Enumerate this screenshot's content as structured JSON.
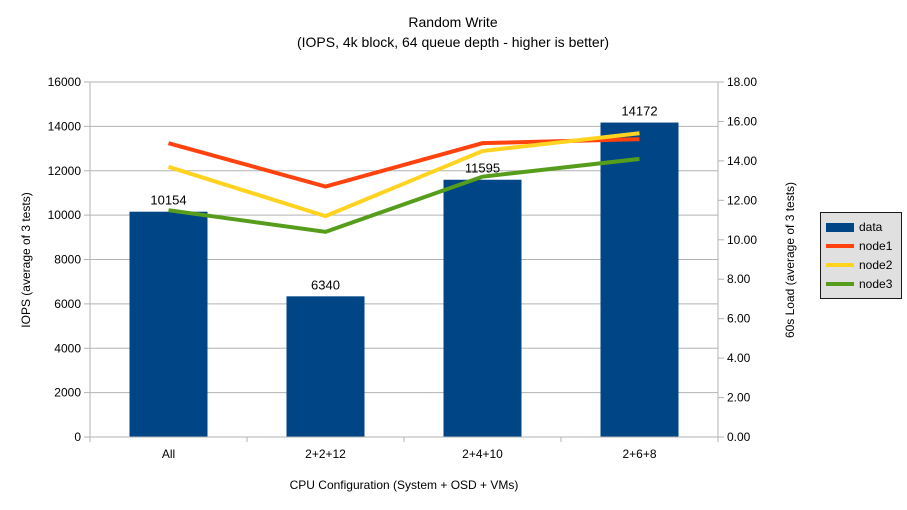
{
  "title": {
    "line1": "Random Write",
    "line2": "(IOPS, 4k block, 64 queue depth - higher is better)"
  },
  "chart_data": {
    "type": "combo-bar-line",
    "categories": [
      "All",
      "2+2+12",
      "2+4+10",
      "2+6+8"
    ],
    "bar_series": {
      "name": "data",
      "color": "#004586",
      "axis": "left",
      "values": [
        10154,
        6340,
        11595,
        14172
      ],
      "labels": [
        "10154",
        "6340",
        "11595",
        "14172"
      ]
    },
    "line_series": [
      {
        "name": "node1",
        "color": "#ff420e",
        "axis": "right",
        "values": [
          14.9,
          12.7,
          14.9,
          15.1
        ]
      },
      {
        "name": "node2",
        "color": "#ffd320",
        "axis": "right",
        "values": [
          13.7,
          11.2,
          14.5,
          15.4
        ]
      },
      {
        "name": "node3",
        "color": "#579d1c",
        "axis": "right",
        "values": [
          11.5,
          10.4,
          13.2,
          14.1
        ]
      }
    ],
    "left_axis": {
      "title": "IOPS (average of 3 tests)",
      "min": 0,
      "max": 16000,
      "step": 2000,
      "tick_labels": [
        "0",
        "2000",
        "4000",
        "6000",
        "8000",
        "10000",
        "12000",
        "14000",
        "16000"
      ]
    },
    "right_axis": {
      "title": "60s Load (average of 3 tests)",
      "min": 0,
      "max": 18,
      "step": 2,
      "tick_labels": [
        "0.00",
        "2.00",
        "4.00",
        "6.00",
        "8.00",
        "10.00",
        "12.00",
        "14.00",
        "16.00",
        "18.00"
      ]
    },
    "x_axis": {
      "title": "CPU Configuration (System + OSD + VMs)"
    },
    "legend": {
      "position": "right",
      "items": [
        {
          "label": "data",
          "color": "#004586",
          "marker": "rect"
        },
        {
          "label": "node1",
          "color": "#ff420e",
          "marker": "line"
        },
        {
          "label": "node2",
          "color": "#ffd320",
          "marker": "line"
        },
        {
          "label": "node3",
          "color": "#579d1c",
          "marker": "line"
        }
      ]
    },
    "grid": {
      "horizontal": true,
      "color": "#b3b3b3"
    }
  },
  "colors": {
    "background": "#ffffff",
    "axis": "#b3b3b3",
    "text": "#000000",
    "legend_bg": "#e0e0e0",
    "legend_border": "#1a1a1a"
  }
}
